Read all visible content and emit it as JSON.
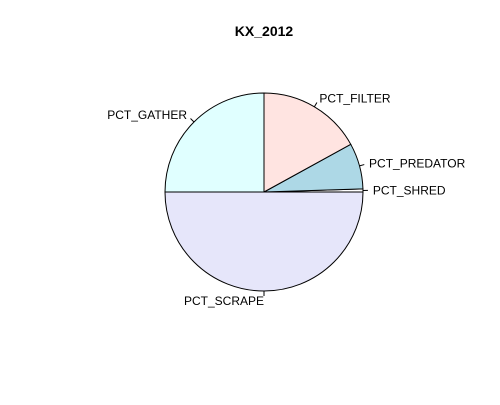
{
  "chart_data": {
    "type": "pie",
    "title": "KX_2012",
    "slices": [
      {
        "label": "PCT_SHRED",
        "value": 0.5,
        "color": "#ffffff"
      },
      {
        "label": "PCT_PREDATOR",
        "value": 7.5,
        "color": "#add8e6"
      },
      {
        "label": "PCT_FILTER",
        "value": 17.0,
        "color": "#ffe4e1"
      },
      {
        "label": "PCT_GATHER",
        "value": 25.0,
        "color": "#e0ffff"
      },
      {
        "label": "PCT_SCRAPE",
        "value": 50.0,
        "color": "#e6e6fa"
      }
    ]
  }
}
